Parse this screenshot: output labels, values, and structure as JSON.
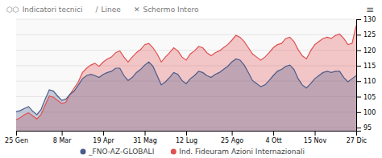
{
  "chart_data": {
    "type": "area",
    "annotations": [
      "⬡⬡",
      "Indicatori tecnici",
      "/",
      "Linee",
      "✕",
      "Schermo Intero",
      "≡"
    ],
    "categories": [
      "25 Gen",
      null,
      null,
      null,
      null,
      null,
      null,
      null,
      null,
      null,
      null,
      "8 Mar",
      null,
      null,
      null,
      null,
      null,
      null,
      null,
      null,
      null,
      "19 Apr",
      null,
      null,
      null,
      null,
      null,
      null,
      null,
      null,
      null,
      "31 Mag",
      null,
      null,
      null,
      null,
      null,
      null,
      null,
      null,
      null,
      "12 Lug",
      null,
      null,
      null,
      null,
      null,
      null,
      null,
      null,
      null,
      null,
      "25 Ago",
      null,
      null,
      null,
      null,
      null,
      null,
      null,
      null,
      null,
      "4 Ott",
      null,
      null,
      null,
      null,
      null,
      null,
      null,
      null,
      null,
      "15 Nov",
      null,
      null,
      null,
      null,
      null,
      null,
      null,
      null,
      null,
      "27 Dic"
    ],
    "series": [
      {
        "name": "_FNO-AZ-GLOBALI",
        "color": "#4a5a8a",
        "values": [
          100.2,
          100.5,
          101.2,
          101.8,
          100.3,
          99.2,
          100.8,
          104.2,
          107.2,
          106.8,
          105.2,
          103.8,
          104.2,
          105.8,
          106.8,
          108.8,
          110.8,
          111.8,
          112.2,
          111.8,
          111.2,
          112.2,
          112.8,
          113.2,
          114.2,
          114.2,
          111.8,
          110.2,
          111.2,
          112.8,
          113.8,
          115.2,
          116.2,
          114.8,
          111.8,
          108.8,
          109.8,
          111.2,
          112.8,
          112.2,
          110.2,
          109.2,
          110.8,
          111.8,
          113.2,
          112.8,
          111.8,
          111.2,
          112.2,
          112.8,
          113.8,
          114.8,
          116.2,
          117.2,
          116.8,
          115.2,
          112.8,
          110.2,
          109.2,
          108.2,
          108.8,
          110.2,
          111.8,
          113.2,
          113.8,
          114.8,
          115.2,
          113.8,
          110.8,
          108.8,
          107.8,
          109.2,
          110.8,
          111.8,
          112.8,
          113.2,
          112.8,
          113.2,
          113.2,
          111.2,
          109.8,
          110.8,
          111.8
        ]
      },
      {
        "name": "Ind. Fideuram Azioni Internazionali",
        "color": "#e05050",
        "values": [
          97.5,
          98.2,
          99.2,
          99.8,
          98.8,
          97.8,
          99.2,
          102.2,
          105.2,
          104.8,
          103.8,
          102.8,
          103.2,
          105.8,
          107.8,
          109.8,
          112.8,
          114.2,
          115.2,
          115.8,
          114.8,
          116.2,
          117.2,
          117.8,
          119.2,
          119.8,
          117.8,
          116.2,
          117.8,
          119.2,
          120.2,
          121.8,
          122.2,
          120.8,
          118.8,
          116.2,
          117.8,
          119.2,
          120.8,
          119.8,
          117.8,
          116.8,
          118.8,
          119.8,
          121.2,
          120.8,
          119.2,
          118.2,
          119.2,
          119.8,
          120.8,
          121.8,
          123.2,
          124.8,
          124.2,
          122.8,
          120.8,
          118.8,
          117.8,
          116.8,
          117.8,
          119.2,
          120.8,
          121.8,
          122.2,
          123.8,
          124.2,
          122.8,
          120.2,
          118.2,
          117.2,
          119.8,
          121.8,
          122.8,
          123.8,
          124.2,
          123.8,
          124.8,
          125.2,
          123.8,
          121.8,
          122.2,
          128.0
        ]
      }
    ],
    "ylim": [
      94,
      130
    ],
    "yticks": [
      95,
      100,
      105,
      110,
      115,
      120,
      125,
      130
    ],
    "grid": true,
    "legend": "bottom"
  }
}
